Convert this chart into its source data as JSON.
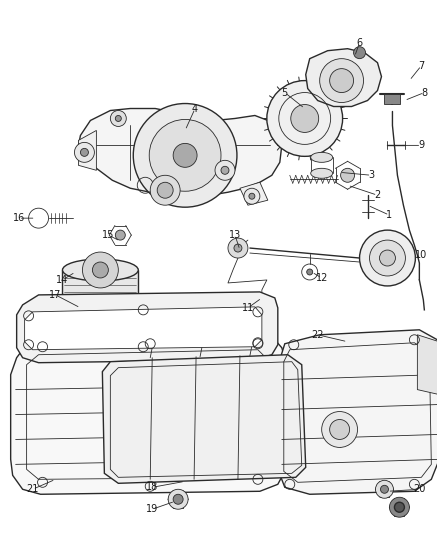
{
  "background_color": "#ffffff",
  "line_color": "#2a2a2a",
  "label_color": "#1a1a1a",
  "figsize": [
    4.38,
    5.33
  ],
  "dpi": 100
}
